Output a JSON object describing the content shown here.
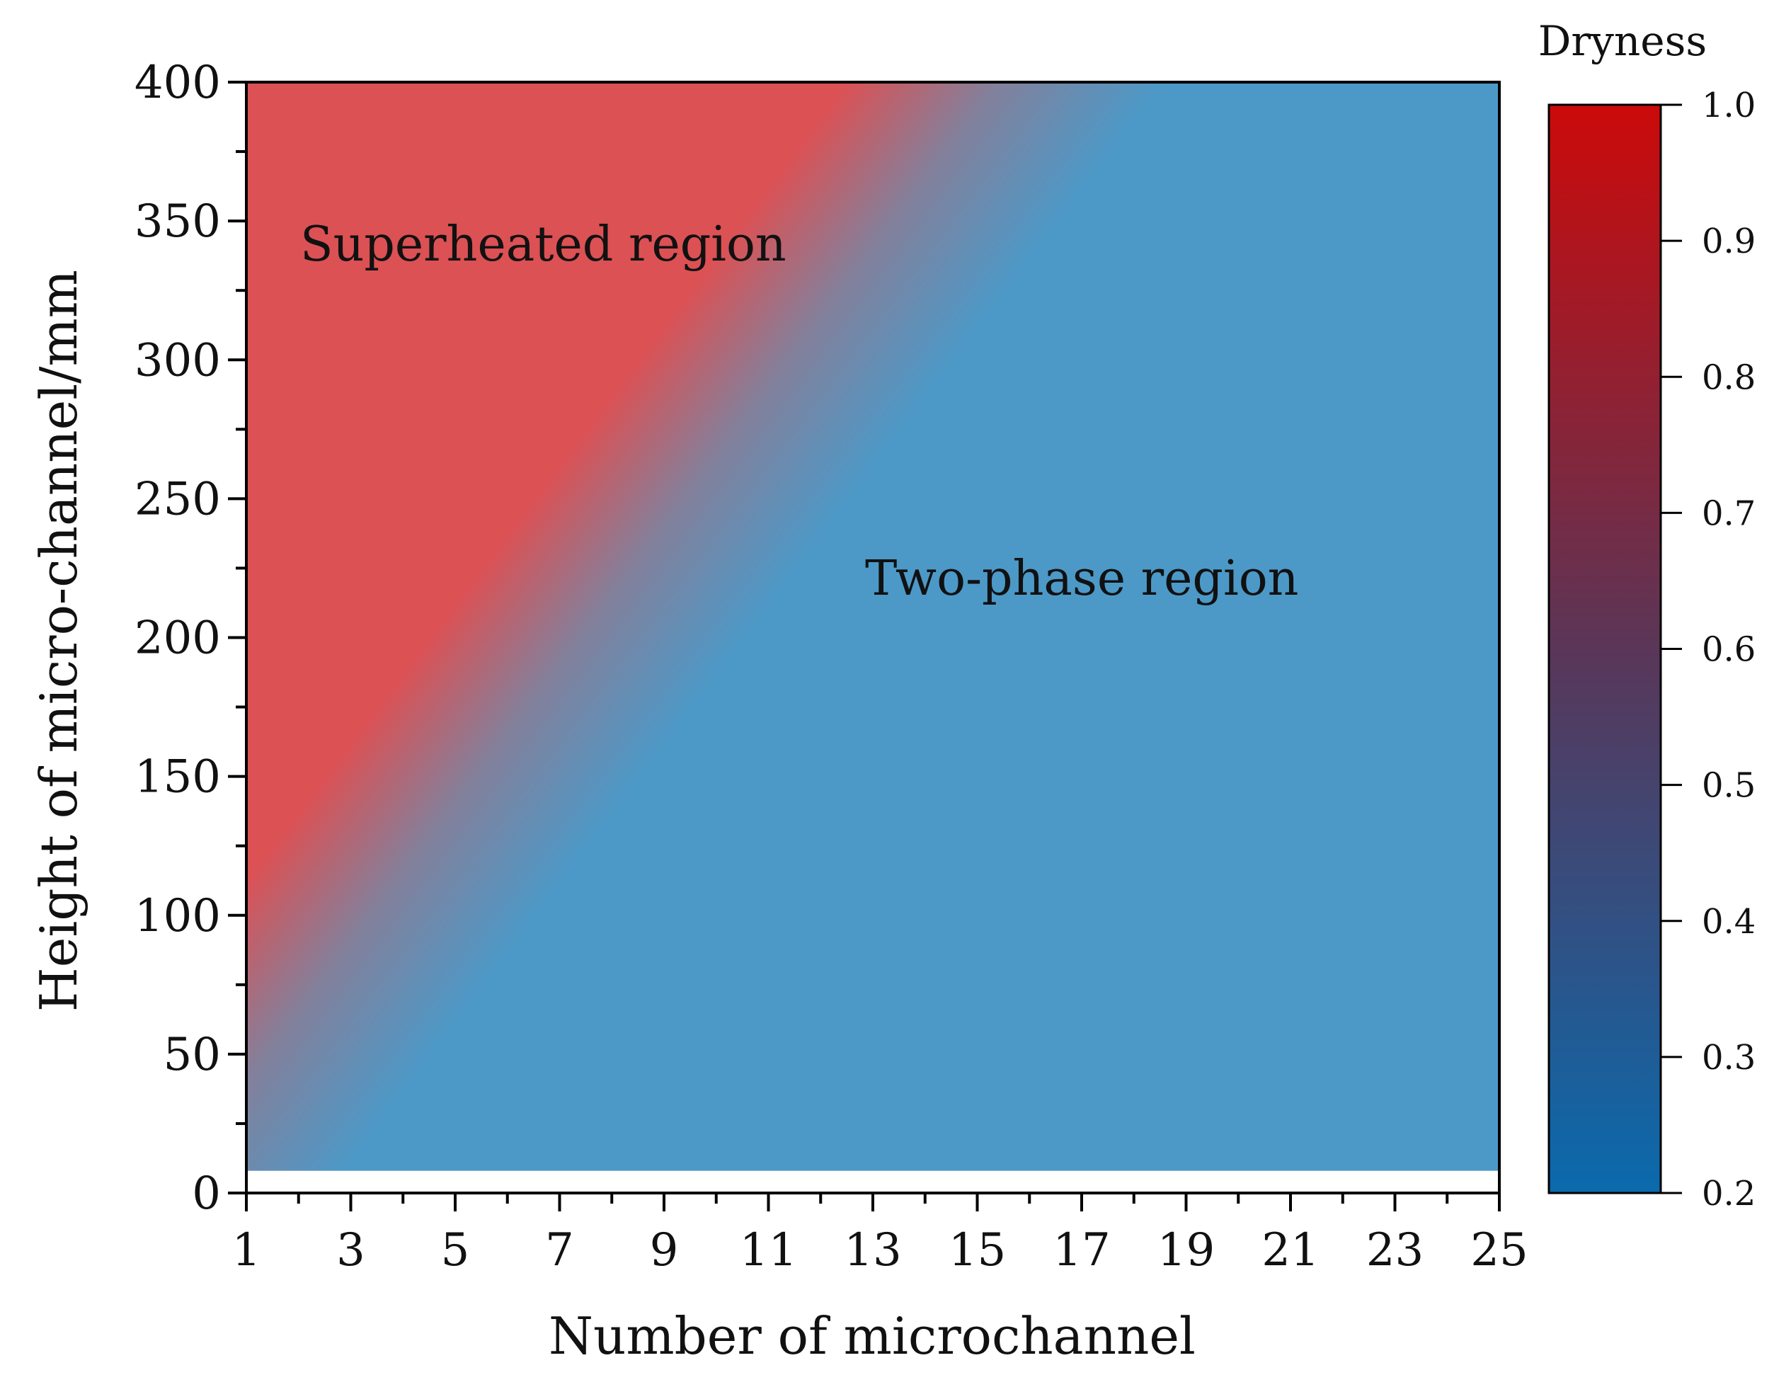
{
  "chart_data": {
    "type": "heatmap",
    "title": "",
    "xlabel": "Number of microchannel",
    "ylabel": "Height of micro-channel/mm",
    "xlim": [
      1,
      25
    ],
    "ylim": [
      0,
      400
    ],
    "x_ticks": [
      1,
      3,
      5,
      7,
      9,
      11,
      13,
      15,
      17,
      19,
      21,
      23,
      25
    ],
    "y_ticks": [
      0,
      50,
      100,
      150,
      200,
      250,
      300,
      350,
      400
    ],
    "data_y_range": [
      8,
      400
    ],
    "colorbar": {
      "title": "Dryness",
      "min": 0.2,
      "max": 1.0,
      "ticks": [
        "1.0",
        "0.9",
        "0.8",
        "0.7",
        "0.6",
        "0.5",
        "0.4",
        "0.3",
        "0.2"
      ],
      "color_low": "#0a6aad",
      "color_mid": "#5a3658",
      "color_high": "#cc0a0a"
    },
    "rendered_colors": {
      "superheated": "#dc5154",
      "two_phase": "#4c99c8"
    },
    "annotations": [
      "Superheated region",
      "Two-phase region"
    ],
    "boundary_x1": [
      1,
      13
    ],
    "boundary_y": [
      100,
      400
    ],
    "grid": false
  }
}
